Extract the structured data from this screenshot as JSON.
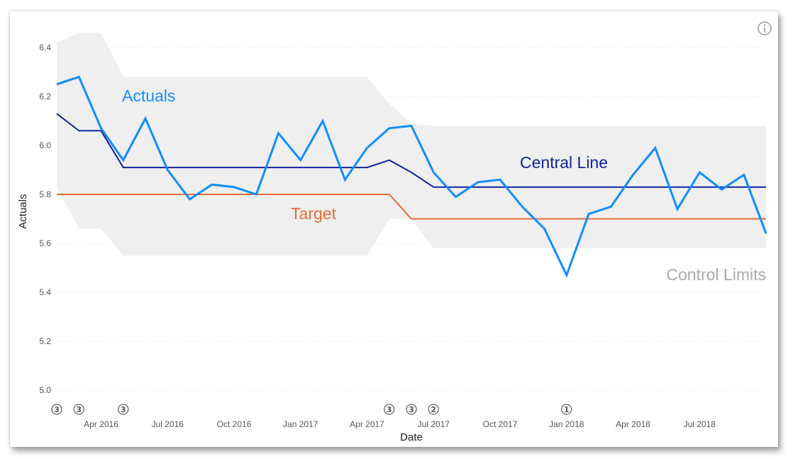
{
  "chart_data": {
    "type": "line",
    "xlabel": "Date",
    "ylabel": "Actuals",
    "ylim": [
      5.0,
      6.4
    ],
    "yticks": [
      "5.0",
      "5.2",
      "5.4",
      "5.6",
      "5.8",
      "6.0",
      "6.2",
      "6.4"
    ],
    "x": [
      "2016-02",
      "2016-03",
      "2016-04",
      "2016-05",
      "2016-06",
      "2016-07",
      "2016-08",
      "2016-09",
      "2016-10",
      "2016-11",
      "2016-12",
      "2017-01",
      "2017-02",
      "2017-03",
      "2017-04",
      "2017-05",
      "2017-06",
      "2017-07",
      "2017-08",
      "2017-09",
      "2017-10",
      "2017-11",
      "2017-12",
      "2018-01",
      "2018-02",
      "2018-03",
      "2018-04",
      "2018-05",
      "2018-06",
      "2018-07",
      "2018-08",
      "2018-09",
      "2018-10"
    ],
    "xticks": [
      {
        "label": "Apr 2016",
        "at": "2016-04"
      },
      {
        "label": "Jul 2016",
        "at": "2016-07"
      },
      {
        "label": "Oct 2016",
        "at": "2016-10"
      },
      {
        "label": "Jan 2017",
        "at": "2017-01"
      },
      {
        "label": "Apr 2017",
        "at": "2017-04"
      },
      {
        "label": "Jul 2017",
        "at": "2017-07"
      },
      {
        "label": "Oct 2017",
        "at": "2017-10"
      },
      {
        "label": "Jan 2018",
        "at": "2018-01"
      },
      {
        "label": "Apr 2018",
        "at": "2018-04"
      },
      {
        "label": "Jul 2018",
        "at": "2018-07"
      }
    ],
    "series": [
      {
        "name": "Actuals",
        "color": "#118DFF",
        "values": [
          6.25,
          6.28,
          6.07,
          5.94,
          6.11,
          5.9,
          5.78,
          5.84,
          5.83,
          5.8,
          6.05,
          5.94,
          6.1,
          5.86,
          5.99,
          6.07,
          6.08,
          5.89,
          5.79,
          5.85,
          5.86,
          5.75,
          5.66,
          5.47,
          5.72,
          5.75,
          5.88,
          5.99,
          5.74,
          5.89,
          5.82,
          5.88,
          5.64
        ]
      },
      {
        "name": "Central Line",
        "color": "#12239E",
        "values": [
          6.13,
          6.06,
          6.06,
          5.91,
          5.91,
          5.91,
          5.91,
          5.91,
          5.91,
          5.91,
          5.91,
          5.91,
          5.91,
          5.91,
          5.91,
          5.94,
          5.89,
          5.83,
          5.83,
          5.83,
          5.83,
          5.83,
          5.83,
          5.83,
          5.83,
          5.83,
          5.83,
          5.83,
          5.83,
          5.83,
          5.83,
          5.83,
          5.83
        ]
      },
      {
        "name": "Target",
        "color": "#E66C37",
        "values": [
          5.8,
          5.8,
          5.8,
          5.8,
          5.8,
          5.8,
          5.8,
          5.8,
          5.8,
          5.8,
          5.8,
          5.8,
          5.8,
          5.8,
          5.8,
          5.8,
          5.7,
          5.7,
          5.7,
          5.7,
          5.7,
          5.7,
          5.7,
          5.7,
          5.7,
          5.7,
          5.7,
          5.7,
          5.7,
          5.7,
          5.7,
          5.7,
          5.7
        ]
      }
    ],
    "control_limits": {
      "name": "Control Limits",
      "color": "#EFEFEF",
      "label_color": "#AAAAAA",
      "upper": [
        6.42,
        6.46,
        6.46,
        6.28,
        6.28,
        6.28,
        6.28,
        6.28,
        6.28,
        6.28,
        6.28,
        6.28,
        6.28,
        6.28,
        6.28,
        6.17,
        6.09,
        6.08,
        6.08,
        6.08,
        6.08,
        6.08,
        6.08,
        6.08,
        6.08,
        6.08,
        6.08,
        6.08,
        6.08,
        6.08,
        6.08,
        6.08,
        6.08
      ],
      "lower": [
        5.83,
        5.66,
        5.66,
        5.55,
        5.55,
        5.55,
        5.55,
        5.55,
        5.55,
        5.55,
        5.55,
        5.55,
        5.55,
        5.55,
        5.55,
        5.7,
        5.7,
        5.58,
        5.58,
        5.58,
        5.58,
        5.58,
        5.58,
        5.58,
        5.58,
        5.58,
        5.58,
        5.58,
        5.58,
        5.58,
        5.58,
        5.58,
        5.58
      ]
    },
    "rule_markers": [
      {
        "at": "2016-02",
        "label": "3"
      },
      {
        "at": "2016-03",
        "label": "3"
      },
      {
        "at": "2016-05",
        "label": "3"
      },
      {
        "at": "2017-05",
        "label": "3"
      },
      {
        "at": "2017-06",
        "label": "3"
      },
      {
        "at": "2017-07",
        "label": "2"
      },
      {
        "at": "2018-01",
        "label": "1"
      }
    ],
    "grid": true,
    "legend": "inline labels",
    "grid_color": "#D9D9D9"
  },
  "info_icon": "info-icon"
}
